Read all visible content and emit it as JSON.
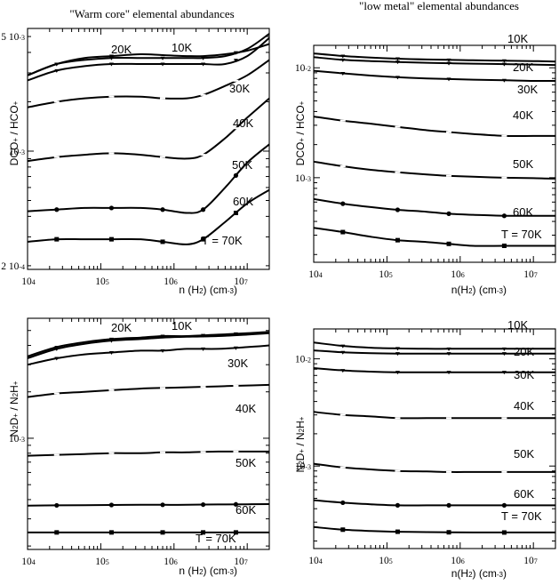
{
  "titles": {
    "left": "\"Warm core\" elemental abundances",
    "right": "\"low metal\" elemental abundances"
  },
  "chart_data": [
    {
      "type": "line",
      "panel": "top-left",
      "xlabel": "n (H2) (cm-3)",
      "xlabel_parts": [
        "n (H",
        "2",
        ") (cm",
        "-3",
        ")"
      ],
      "ylabel_parts": [
        "DCO",
        "+",
        " / HCO",
        "+"
      ],
      "xscale": "log",
      "yscale": "log",
      "xlim": [
        10000,
        20000000
      ],
      "ylim": [
        0.00019,
        0.0056
      ],
      "x_tick_labels": [
        [
          "10",
          "4"
        ],
        [
          "10",
          "5"
        ],
        [
          "10",
          "6"
        ],
        [
          "10",
          "7"
        ]
      ],
      "y_tick_labels": [
        [
          "5 10",
          "-3"
        ],
        [
          "10",
          "-3"
        ],
        [
          "2 10",
          "-4"
        ]
      ],
      "x": [
        10000,
        25000,
        60000,
        140000,
        350000,
        700000,
        1500000,
        2500000,
        5000000,
        10000000,
        20000000
      ],
      "series": [
        {
          "name": "10K",
          "values": [
            0.0029,
            0.0034,
            0.0036,
            0.0037,
            0.0037,
            0.0037,
            0.0037,
            0.0037,
            0.0038,
            0.0042,
            0.0052
          ]
        },
        {
          "name": "20K",
          "values": [
            0.0029,
            0.0034,
            0.0037,
            0.0038,
            0.0039,
            0.00385,
            0.0038,
            0.0038,
            0.0039,
            0.0041,
            0.0045
          ]
        },
        {
          "name": "30K",
          "values": [
            0.0027,
            0.0031,
            0.0033,
            0.0034,
            0.0034,
            0.0034,
            0.0034,
            0.0034,
            0.0034,
            0.0038,
            0.0049
          ]
        },
        {
          "name": "40K",
          "values": [
            0.00185,
            0.002,
            0.0021,
            0.00215,
            0.00215,
            0.0021,
            0.0021,
            0.0022,
            0.0025,
            0.0029,
            0.0036
          ]
        },
        {
          "name": "50K",
          "values": [
            0.00087,
            0.00092,
            0.00095,
            0.00097,
            0.00095,
            0.00092,
            0.0009,
            0.00095,
            0.0012,
            0.0016,
            0.0021
          ]
        },
        {
          "name": "60K",
          "values": [
            0.00043,
            0.00044,
            0.00045,
            0.00045,
            0.00045,
            0.00044,
            0.00042,
            0.00044,
            0.0006,
            0.00085,
            0.0011
          ]
        },
        {
          "name": "T = 70K",
          "values": [
            0.00028,
            0.00029,
            0.00029,
            0.00029,
            0.00029,
            0.00028,
            0.00027,
            0.00029,
            0.00037,
            0.00048,
            0.00058
          ]
        }
      ],
      "markers": {
        "10K": [
          25000,
          140000,
          700000,
          2500000,
          7000000
        ],
        "20K": [
          25000,
          140000
        ],
        "30K": [
          25000,
          140000,
          700000,
          2500000,
          7000000
        ],
        "40K": [
          25000,
          140000,
          700000,
          2500000,
          7000000
        ],
        "50K": [
          25000,
          140000,
          700000,
          2500000,
          7000000
        ],
        "60K": [
          25000,
          140000,
          700000,
          2500000,
          7000000
        ],
        "T = 70K": [
          25000,
          140000,
          700000,
          2500000,
          7000000
        ]
      }
    },
    {
      "type": "line",
      "panel": "top-right",
      "xlabel": "n(H2) (cm-3)",
      "xlabel_parts": [
        "n(H",
        "2",
        ") (cm",
        "-3",
        ")"
      ],
      "ylabel_parts": [
        "DCO",
        "+",
        " / HCO",
        "+"
      ],
      "xscale": "log",
      "yscale": "log",
      "xlim": [
        10000,
        20000000
      ],
      "ylim": [
        0.00017,
        0.016
      ],
      "x_tick_labels": [
        [
          "10",
          "4"
        ],
        [
          "10",
          "5"
        ],
        [
          "10",
          "6"
        ],
        [
          "10",
          "7"
        ]
      ],
      "y_tick_labels": [
        [
          "10",
          "-2"
        ],
        [
          "10",
          "-3"
        ]
      ],
      "x": [
        10000,
        25000,
        60000,
        140000,
        350000,
        700000,
        1500000,
        4000000,
        10000000,
        20000000
      ],
      "series": [
        {
          "name": "10K",
          "values": [
            0.0135,
            0.0128,
            0.0124,
            0.0121,
            0.0119,
            0.0118,
            0.0117,
            0.0116,
            0.0115,
            0.0114
          ]
        },
        {
          "name": "20K",
          "values": [
            0.0125,
            0.0118,
            0.0115,
            0.0113,
            0.0111,
            0.011,
            0.0109,
            0.0108,
            0.0107,
            0.0106
          ]
        },
        {
          "name": "30K",
          "values": [
            0.0094,
            0.0089,
            0.0085,
            0.0082,
            0.008,
            0.0079,
            0.0078,
            0.0077,
            0.0076,
            0.0076
          ]
        },
        {
          "name": "40K",
          "values": [
            0.0036,
            0.0033,
            0.0031,
            0.0029,
            0.0027,
            0.0026,
            0.0025,
            0.0024,
            0.0024,
            0.0024
          ]
        },
        {
          "name": "50K",
          "values": [
            0.0014,
            0.00127,
            0.00118,
            0.00112,
            0.00107,
            0.00104,
            0.00102,
            0.001,
            0.00099,
            0.00098
          ]
        },
        {
          "name": "60K",
          "values": [
            0.00064,
            0.00058,
            0.00054,
            0.00051,
            0.00049,
            0.00047,
            0.00046,
            0.00045,
            0.00045,
            0.00045
          ]
        },
        {
          "name": "T = 70K",
          "values": [
            0.00035,
            0.00032,
            0.00029,
            0.00027,
            0.00026,
            0.00025,
            0.00024,
            0.00024,
            0.00024,
            0.00024
          ]
        }
      ],
      "markers": {
        "10K": [
          25000,
          140000,
          700000,
          4000000
        ],
        "20K": [
          25000,
          140000,
          700000,
          4000000
        ],
        "30K": [
          25000,
          140000,
          700000,
          4000000
        ],
        "40K": [
          25000,
          140000,
          700000,
          4000000
        ],
        "50K": [
          25000,
          140000,
          700000,
          4000000
        ],
        "60K": [
          25000,
          140000,
          700000,
          4000000
        ],
        "T = 70K": [
          25000,
          140000,
          700000,
          4000000
        ]
      }
    },
    {
      "type": "line",
      "panel": "bottom-left",
      "xlabel": "n (H2) (cm-3)",
      "xlabel_parts": [
        "n (H",
        "2",
        ") (cm",
        "-3",
        ")"
      ],
      "ylabel_parts": [
        "N",
        "2",
        "D",
        "+",
        " / N",
        "2",
        "H",
        "+"
      ],
      "xscale": "log",
      "yscale": "log",
      "xlim": [
        10000,
        20000000
      ],
      "ylim": [
        0.00019,
        0.006
      ],
      "x_tick_labels": [
        [
          "10",
          "4"
        ],
        [
          "10",
          "5"
        ],
        [
          "10",
          "6"
        ],
        [
          "10",
          "7"
        ]
      ],
      "y_tick_labels": [
        [
          "10",
          "-3"
        ]
      ],
      "x": [
        10000,
        25000,
        60000,
        140000,
        350000,
        700000,
        1500000,
        4000000,
        10000000,
        20000000
      ],
      "series": [
        {
          "name": "10K",
          "values": [
            0.0034,
            0.0039,
            0.0042,
            0.0044,
            0.0045,
            0.0046,
            0.0046,
            0.0047,
            0.0048,
            0.0049
          ]
        },
        {
          "name": "20K",
          "values": [
            0.0033,
            0.0038,
            0.0041,
            0.0043,
            0.0044,
            0.0045,
            0.00455,
            0.0046,
            0.0047,
            0.0048
          ]
        },
        {
          "name": "30K",
          "values": [
            0.003,
            0.0033,
            0.0035,
            0.0036,
            0.0037,
            0.0037,
            0.0038,
            0.0038,
            0.0039,
            0.004
          ]
        },
        {
          "name": "40K",
          "values": [
            0.00185,
            0.00195,
            0.002,
            0.00205,
            0.0021,
            0.00212,
            0.00214,
            0.00217,
            0.0022,
            0.00222
          ]
        },
        {
          "name": "50K",
          "values": [
            0.00077,
            0.00078,
            0.00079,
            0.0008,
            0.0008,
            0.00081,
            0.00081,
            0.00082,
            0.00082,
            0.00082
          ]
        },
        {
          "name": "60K",
          "values": [
            0.000365,
            0.000367,
            0.000368,
            0.000369,
            0.00037,
            0.00037,
            0.00037,
            0.000372,
            0.000373,
            0.000374
          ]
        },
        {
          "name": "T = 70K",
          "values": [
            0.000245,
            0.000245,
            0.000245,
            0.000245,
            0.000245,
            0.000245,
            0.000245,
            0.000245,
            0.000245,
            0.000245
          ]
        }
      ],
      "markers": {
        "10K": [
          25000,
          140000,
          700000,
          2500000,
          7000000
        ],
        "20K": [
          25000,
          140000
        ],
        "30K": [
          25000,
          140000,
          700000,
          2500000,
          7000000
        ],
        "40K": [
          25000,
          140000,
          700000,
          2500000,
          7000000
        ],
        "50K": [
          25000,
          140000,
          700000,
          2500000,
          7000000
        ],
        "60K": [
          25000,
          140000,
          700000,
          2500000,
          7000000
        ],
        "T = 70K": [
          25000,
          140000,
          700000,
          2500000,
          7000000
        ]
      }
    },
    {
      "type": "line",
      "panel": "bottom-right",
      "xlabel": "n(H2) (cm-3)",
      "xlabel_parts": [
        "n(H",
        "2",
        ") (cm",
        "-3",
        ")"
      ],
      "ylabel_parts": [
        "N",
        "2",
        "D",
        "+",
        " / N",
        "2",
        "H",
        "+"
      ],
      "xscale": "log",
      "yscale": "log",
      "xlim": [
        10000,
        20000000
      ],
      "ylim": [
        0.00017,
        0.019
      ],
      "x_tick_labels": [
        [
          "10",
          "4"
        ],
        [
          "10",
          "5"
        ],
        [
          "10",
          "6"
        ],
        [
          "10",
          "7"
        ]
      ],
      "y_tick_labels": [
        [
          "10",
          "-2"
        ],
        [
          "10",
          "-3"
        ]
      ],
      "x": [
        10000,
        25000,
        60000,
        140000,
        350000,
        700000,
        1500000,
        4000000,
        10000000,
        20000000
      ],
      "series": [
        {
          "name": "10K",
          "values": [
            0.0142,
            0.0132,
            0.0127,
            0.0125,
            0.0124,
            0.0124,
            0.0124,
            0.0124,
            0.0124,
            0.0124
          ]
        },
        {
          "name": "20K",
          "values": [
            0.012,
            0.0115,
            0.0113,
            0.0112,
            0.0112,
            0.0112,
            0.0112,
            0.0112,
            0.0112,
            0.0112
          ]
        },
        {
          "name": "30K",
          "values": [
            0.0082,
            0.0078,
            0.0076,
            0.0075,
            0.0075,
            0.0075,
            0.0075,
            0.0075,
            0.0075,
            0.0075
          ]
        },
        {
          "name": "40K",
          "values": [
            0.0032,
            0.003,
            0.0029,
            0.0028,
            0.0028,
            0.0028,
            0.0028,
            0.0028,
            0.0028,
            0.0028
          ]
        },
        {
          "name": "50K",
          "values": [
            0.00105,
            0.00097,
            0.00093,
            0.0009,
            0.00089,
            0.00088,
            0.00088,
            0.00088,
            0.00088,
            0.00088
          ]
        },
        {
          "name": "60K",
          "values": [
            0.00048,
            0.000455,
            0.00044,
            0.00043,
            0.00043,
            0.00043,
            0.00043,
            0.00043,
            0.00043,
            0.00043
          ]
        },
        {
          "name": "T = 70K",
          "values": [
            0.00027,
            0.000255,
            0.000248,
            0.000244,
            0.000242,
            0.000241,
            0.00024,
            0.00024,
            0.00024,
            0.00024
          ]
        }
      ],
      "markers": {
        "10K": [
          25000,
          140000,
          700000,
          4000000
        ],
        "20K": [
          25000,
          140000,
          700000,
          4000000
        ],
        "30K": [
          25000,
          140000,
          700000,
          4000000
        ],
        "40K": [
          25000,
          140000,
          700000,
          4000000
        ],
        "50K": [
          25000,
          140000,
          700000,
          4000000
        ],
        "60K": [
          25000,
          140000,
          700000,
          4000000
        ],
        "T = 70K": [
          25000,
          140000,
          700000,
          4000000
        ]
      }
    }
  ]
}
